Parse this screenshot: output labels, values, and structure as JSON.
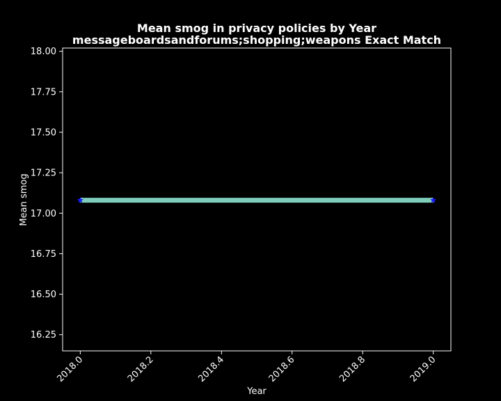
{
  "chart_data": {
    "type": "line",
    "title_line1": "Mean smog in privacy policies by Year",
    "title_line2": "messageboardsandforums;shopping;weapons Exact Match",
    "xlabel": "Year",
    "ylabel": "Mean smog",
    "xlim": [
      1999.9,
      2019.05
    ],
    "ylim": [
      16.15,
      18.02
    ],
    "x_ticks": [
      "2018.0",
      "2018.2",
      "2018.4",
      "2018.6",
      "2018.8",
      "2019.0"
    ],
    "y_ticks": [
      "16.25",
      "16.50",
      "16.75",
      "17.00",
      "17.25",
      "17.50",
      "17.75",
      "18.00"
    ],
    "x_tick_values": [
      2018.0,
      2018.2,
      2018.4,
      2018.6,
      2018.8,
      2019.0
    ],
    "y_tick_values": [
      16.25,
      16.5,
      16.75,
      17.0,
      17.25,
      17.5,
      17.75,
      18.0
    ],
    "series": [
      {
        "x": [
          2018.0,
          2019.0
        ],
        "values": [
          17.08,
          17.08
        ],
        "line_color": "#7fcdbb",
        "marker": "star",
        "marker_color": "#1a1aff"
      }
    ],
    "grid": false,
    "background": "#000000",
    "foreground": "#ffffff"
  }
}
